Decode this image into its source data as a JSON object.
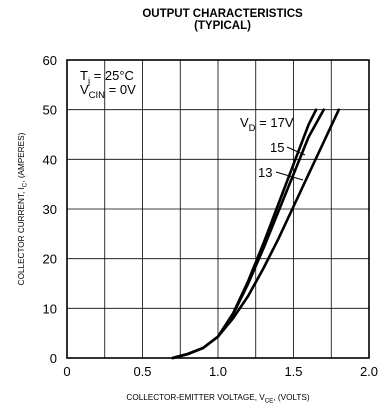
{
  "chart_data": {
    "type": "line",
    "title": "OUTPUT CHARACTERISTICS",
    "subtitle": "(TYPICAL)",
    "xlabel": "COLLECTOR-EMITTER VOLTAGE, V",
    "xlabel_sub": "CE",
    "xlabel_tail": ", (VOLTS)",
    "ylabel": "COLLECTOR CURRENT, I",
    "ylabel_sub": "C",
    "ylabel_tail": ", (AMPERES)",
    "xlim": [
      0,
      2.0
    ],
    "ylim": [
      0,
      60
    ],
    "x_ticks": [
      0,
      0.5,
      1.0,
      1.5,
      2.0
    ],
    "x_tick_labels": [
      "0",
      "0.5",
      "1.0",
      "1.5",
      "2.0"
    ],
    "y_ticks": [
      0,
      10,
      20,
      30,
      40,
      50,
      60
    ],
    "y_tick_labels": [
      "0",
      "10",
      "20",
      "30",
      "40",
      "50",
      "60"
    ],
    "x_grid_step": 0.25,
    "grid": true,
    "conditions": [
      {
        "main": "T",
        "sub": "j",
        "tail": " = 25°C"
      },
      {
        "main": "V",
        "sub": "CIN",
        "tail": " = 0V"
      }
    ],
    "series": [
      {
        "name": "VD = 17V",
        "label_main": "V",
        "label_sub": "D",
        "label_tail": " = 17V",
        "x": [
          0.7,
          0.8,
          0.9,
          1.0,
          1.1,
          1.2,
          1.3,
          1.4,
          1.5,
          1.6,
          1.65
        ],
        "y": [
          0,
          0.8,
          2.0,
          4.3,
          9.0,
          15.5,
          23.0,
          31.0,
          39.0,
          47.0,
          50
        ]
      },
      {
        "name": "15",
        "label": "15",
        "x": [
          0.7,
          0.8,
          0.9,
          1.0,
          1.1,
          1.2,
          1.3,
          1.4,
          1.5,
          1.6,
          1.7
        ],
        "y": [
          0,
          0.8,
          2.0,
          4.3,
          8.8,
          15.0,
          22.0,
          29.5,
          37.0,
          44.5,
          50
        ]
      },
      {
        "name": "13",
        "label": "13",
        "x": [
          0.7,
          0.8,
          0.9,
          1.0,
          1.1,
          1.2,
          1.3,
          1.4,
          1.5,
          1.6,
          1.7,
          1.8
        ],
        "y": [
          0,
          0.8,
          2.0,
          4.3,
          8.0,
          12.5,
          18.0,
          24.0,
          30.5,
          37.0,
          43.5,
          50
        ]
      }
    ]
  }
}
